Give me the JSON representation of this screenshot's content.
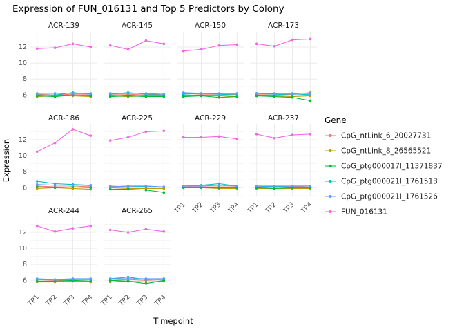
{
  "title": "Expression of FUN_016131 and Top 5 Predictors by Colony",
  "axes": {
    "x_label": "Timepoint",
    "y_label": "Expression",
    "x_ticks": [
      "TP1",
      "TP2",
      "TP3",
      "TP4"
    ],
    "y_ticks": [
      6,
      8,
      10,
      12
    ]
  },
  "legend": {
    "title": "Gene"
  },
  "chart_data": {
    "type": "line",
    "x": [
      "TP1",
      "TP2",
      "TP3",
      "TP4"
    ],
    "y_ticks": [
      6,
      8,
      10,
      12
    ],
    "y_minor": [
      5,
      7,
      9,
      11,
      13
    ],
    "y_domain": [
      4.9,
      13.9
    ],
    "grid": true,
    "legend_position": "right",
    "series": [
      {
        "name": "CpG_ntLink_6_20027731",
        "label": "CpG_ntLink_6_20027731",
        "color": "#F8766D"
      },
      {
        "name": "CpG_ntLink_8_26565521",
        "label": "CpG_ntLink_8_26565521",
        "color": "#B79F00"
      },
      {
        "name": "CpG_ptg000017l_11371837",
        "label": "CpG_ptg000017l_11371837",
        "color": "#00BA38"
      },
      {
        "name": "CpG_ptg000021l_1761513",
        "label": "CpG_ptg000021l_1761513",
        "color": "#00BFC4"
      },
      {
        "name": "CpG_ptg000021l_1761526",
        "label": "CpG_ptg000021l_1761526",
        "color": "#619CFF"
      },
      {
        "name": "FUN_016131",
        "label": "FUN_016131",
        "color": "#F564E3"
      }
    ],
    "facets": [
      {
        "name": "ACR-139",
        "show_x": false,
        "show_y": true,
        "series": {
          "CpG_ntLink_6_20027731": [
            6.1,
            6.0,
            6.1,
            6.1
          ],
          "CpG_ntLink_8_26565521": [
            5.8,
            5.9,
            5.9,
            5.8
          ],
          "CpG_ptg000017l_11371837": [
            5.9,
            5.8,
            6.0,
            5.9
          ],
          "CpG_ptg000021l_1761513": [
            6.0,
            6.0,
            6.3,
            6.1
          ],
          "CpG_ptg000021l_1761526": [
            6.2,
            6.2,
            6.2,
            6.2
          ],
          "FUN_016131": [
            11.8,
            11.9,
            12.4,
            12.0
          ]
        }
      },
      {
        "name": "ACR-145",
        "show_x": false,
        "show_y": false,
        "series": {
          "CpG_ntLink_6_20027731": [
            6.1,
            6.1,
            6.0,
            6.1
          ],
          "CpG_ntLink_8_26565521": [
            5.9,
            5.8,
            5.9,
            5.9
          ],
          "CpG_ptg000017l_11371837": [
            5.8,
            5.9,
            5.8,
            5.8
          ],
          "CpG_ptg000021l_1761513": [
            6.1,
            6.3,
            6.1,
            6.1
          ],
          "CpG_ptg000021l_1761526": [
            6.2,
            6.2,
            6.2,
            6.1
          ],
          "FUN_016131": [
            12.2,
            11.7,
            12.8,
            12.4
          ]
        }
      },
      {
        "name": "ACR-150",
        "show_x": false,
        "show_y": false,
        "series": {
          "CpG_ntLink_6_20027731": [
            6.2,
            6.1,
            6.1,
            6.1
          ],
          "CpG_ntLink_8_26565521": [
            5.9,
            5.9,
            5.9,
            5.8
          ],
          "CpG_ptg000017l_11371837": [
            5.8,
            5.9,
            5.7,
            5.8
          ],
          "CpG_ptg000021l_1761513": [
            6.1,
            6.2,
            6.1,
            6.0
          ],
          "CpG_ptg000021l_1761526": [
            6.3,
            6.2,
            6.2,
            6.2
          ],
          "FUN_016131": [
            11.5,
            11.7,
            12.2,
            12.3
          ]
        }
      },
      {
        "name": "ACR-173",
        "show_x": false,
        "show_y": false,
        "series": {
          "CpG_ntLink_6_20027731": [
            6.1,
            6.1,
            6.1,
            6.3
          ],
          "CpG_ntLink_8_26565521": [
            5.9,
            5.9,
            5.8,
            5.9
          ],
          "CpG_ptg000017l_11371837": [
            5.9,
            5.8,
            5.7,
            5.3
          ],
          "CpG_ptg000021l_1761513": [
            6.2,
            6.1,
            6.0,
            6.1
          ],
          "CpG_ptg000021l_1761526": [
            6.2,
            6.2,
            6.2,
            6.2
          ],
          "FUN_016131": [
            12.4,
            12.1,
            12.9,
            13.0
          ]
        }
      },
      {
        "name": "ACR-186",
        "show_x": false,
        "show_y": true,
        "series": {
          "CpG_ntLink_6_20027731": [
            6.2,
            6.1,
            6.1,
            6.2
          ],
          "CpG_ntLink_8_26565521": [
            5.9,
            6.0,
            5.9,
            5.8
          ],
          "CpG_ptg000017l_11371837": [
            6.1,
            6.0,
            6.1,
            6.0
          ],
          "CpG_ptg000021l_1761513": [
            6.8,
            6.5,
            6.4,
            6.3
          ],
          "CpG_ptg000021l_1761526": [
            6.4,
            6.3,
            6.3,
            6.3
          ],
          "FUN_016131": [
            10.5,
            11.6,
            13.3,
            12.5
          ]
        }
      },
      {
        "name": "ACR-225",
        "show_x": false,
        "show_y": false,
        "series": {
          "CpG_ntLink_6_20027731": [
            6.2,
            6.1,
            6.1,
            6.1
          ],
          "CpG_ntLink_8_26565521": [
            6.0,
            5.9,
            5.9,
            5.9
          ],
          "CpG_ptg000017l_11371837": [
            5.8,
            5.8,
            5.7,
            5.4
          ],
          "CpG_ptg000021l_1761513": [
            6.1,
            6.2,
            6.1,
            6.1
          ],
          "CpG_ptg000021l_1761526": [
            6.1,
            6.2,
            6.2,
            6.1
          ],
          "FUN_016131": [
            11.9,
            12.3,
            13.0,
            13.1
          ]
        }
      },
      {
        "name": "ACR-229",
        "show_x": true,
        "show_y": false,
        "series": {
          "CpG_ntLink_6_20027731": [
            6.1,
            6.1,
            6.1,
            6.1
          ],
          "CpG_ntLink_8_26565521": [
            6.0,
            6.0,
            5.9,
            5.9
          ],
          "CpG_ptg000017l_11371837": [
            6.0,
            6.0,
            6.0,
            6.0
          ],
          "CpG_ptg000021l_1761513": [
            6.2,
            6.3,
            6.5,
            6.2
          ],
          "CpG_ptg000021l_1761526": [
            6.2,
            6.2,
            6.3,
            6.2
          ],
          "FUN_016131": [
            12.3,
            12.3,
            12.4,
            12.1
          ]
        }
      },
      {
        "name": "ACR-237",
        "show_x": true,
        "show_y": false,
        "series": {
          "CpG_ntLink_6_20027731": [
            6.1,
            6.1,
            6.1,
            6.2
          ],
          "CpG_ntLink_8_26565521": [
            5.9,
            5.9,
            5.9,
            5.9
          ],
          "CpG_ptg000017l_11371837": [
            6.0,
            5.9,
            6.0,
            6.0
          ],
          "CpG_ptg000021l_1761513": [
            6.2,
            6.1,
            6.2,
            6.2
          ],
          "CpG_ptg000021l_1761526": [
            6.2,
            6.2,
            6.2,
            6.2
          ],
          "FUN_016131": [
            12.7,
            12.2,
            12.6,
            12.7
          ]
        }
      },
      {
        "name": "ACR-244",
        "show_x": true,
        "show_y": true,
        "series": {
          "CpG_ntLink_6_20027731": [
            6.1,
            6.0,
            6.1,
            6.1
          ],
          "CpG_ntLink_8_26565521": [
            5.8,
            5.8,
            5.9,
            5.8
          ],
          "CpG_ptg000017l_11371837": [
            5.9,
            5.9,
            6.0,
            5.9
          ],
          "CpG_ptg000021l_1761513": [
            6.1,
            6.1,
            6.1,
            6.1
          ],
          "CpG_ptg000021l_1761526": [
            6.2,
            6.1,
            6.2,
            6.2
          ],
          "FUN_016131": [
            12.8,
            12.1,
            12.5,
            12.8
          ]
        }
      },
      {
        "name": "ACR-265",
        "show_x": true,
        "show_y": false,
        "series": {
          "CpG_ntLink_6_20027731": [
            6.0,
            6.1,
            6.0,
            6.1
          ],
          "CpG_ntLink_8_26565521": [
            5.8,
            5.9,
            5.8,
            5.9
          ],
          "CpG_ptg000017l_11371837": [
            6.0,
            5.9,
            5.6,
            6.0
          ],
          "CpG_ptg000021l_1761513": [
            6.2,
            6.4,
            6.1,
            6.2
          ],
          "CpG_ptg000021l_1761526": [
            6.2,
            6.2,
            6.2,
            6.2
          ],
          "FUN_016131": [
            12.3,
            12.0,
            12.4,
            12.1
          ]
        }
      }
    ]
  }
}
